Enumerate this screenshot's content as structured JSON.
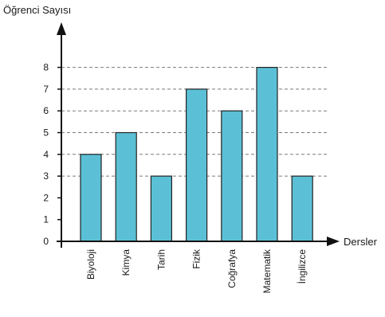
{
  "chart_data": {
    "type": "bar",
    "title": "",
    "ylabel": "Öğrenci Sayısı",
    "xlabel": "Dersler",
    "categories": [
      "Biyoloji",
      "Kimya",
      "Tarih",
      "Fizik",
      "Coğrafya",
      "Matematik",
      "İngilizce"
    ],
    "values": [
      4,
      5,
      3,
      7,
      6,
      8,
      3
    ],
    "yticks": [
      "0",
      "1",
      "2",
      "3",
      "4",
      "5",
      "6",
      "7",
      "8"
    ],
    "ylim": [
      0,
      8
    ],
    "gridlines": "dashed at each bar value (3, 4, 5, 6, 7, 8)",
    "bar_color": "#5bc0d6",
    "bar_stroke": "#222222",
    "legend": "none"
  }
}
